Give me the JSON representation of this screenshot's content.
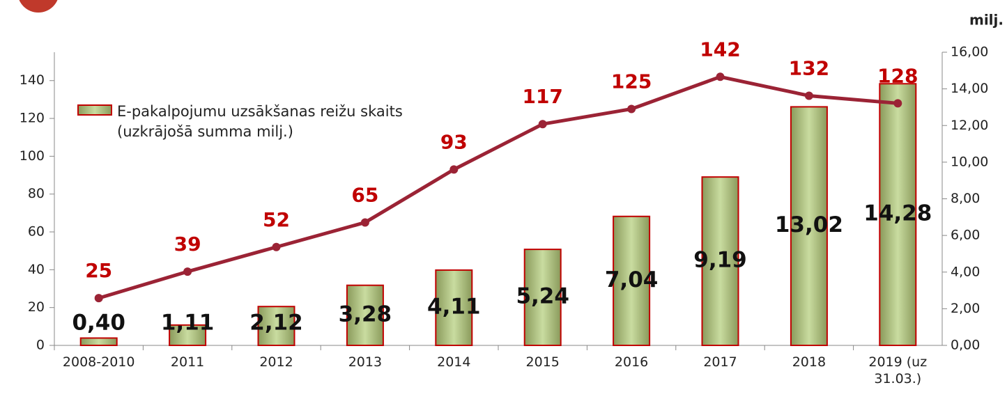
{
  "chart_data": {
    "type": "bar-line",
    "unit_label": "milj.",
    "categories": [
      "2008-2010",
      "2011",
      "2012",
      "2013",
      "2014",
      "2015",
      "2016",
      "2017",
      "2018",
      "2019 (uz 31.03.)"
    ],
    "series": [
      {
        "name": "E-pakalpojumu uzsākšanas reižu skaits (uzkrājošā summa milj.)",
        "type": "bar",
        "axis": "y2",
        "color": "#c4d79b",
        "values": [
          0.4,
          1.11,
          2.12,
          3.28,
          4.11,
          5.24,
          7.04,
          9.19,
          13.02,
          14.28
        ],
        "value_labels": [
          "0,40",
          "1,11",
          "2,12",
          "3,28",
          "4,11",
          "5,24",
          "7,04",
          "9,19",
          "13,02",
          "14,28"
        ]
      },
      {
        "type": "line",
        "axis": "y",
        "color": "#9b2335",
        "values": [
          25,
          39,
          52,
          65,
          93,
          117,
          125,
          142,
          132,
          128
        ]
      }
    ],
    "ylim": [
      0,
      155
    ],
    "yticks": [
      0,
      20,
      40,
      60,
      80,
      100,
      120,
      140
    ],
    "y2lim": [
      0,
      16
    ],
    "y2ticks": [
      {
        "value": 0,
        "label": "0,00"
      },
      {
        "value": 2,
        "label": "2,00"
      },
      {
        "value": 4,
        "label": "4,00"
      },
      {
        "value": 6,
        "label": "6,00"
      },
      {
        "value": 8,
        "label": "8,00"
      },
      {
        "value": 10,
        "label": "10,00"
      },
      {
        "value": 12,
        "label": "12,00"
      },
      {
        "value": 14,
        "label": "14,00"
      },
      {
        "value": 16,
        "label": "16,00"
      }
    ]
  }
}
